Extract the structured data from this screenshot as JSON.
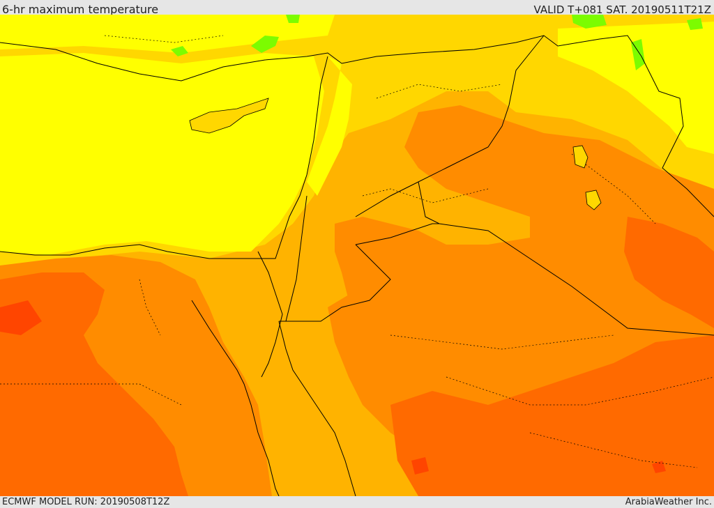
{
  "header": {
    "title": "6-hr maximum temperature",
    "valid": "VALID T+081 SAT. 20190511T21Z"
  },
  "footer": {
    "model_run": "ECMWF MODEL RUN: 20190508T12Z",
    "provider": "ArabiaWeather Inc."
  },
  "palette": {
    "sea_yellow": "#ffff00",
    "light_orange": "#ffd700",
    "orange": "#ffb300",
    "dark_orange": "#ff8c00",
    "red_orange": "#ff6a00",
    "red": "#ff4500",
    "green": "#7cfc00",
    "border": "#000000"
  }
}
